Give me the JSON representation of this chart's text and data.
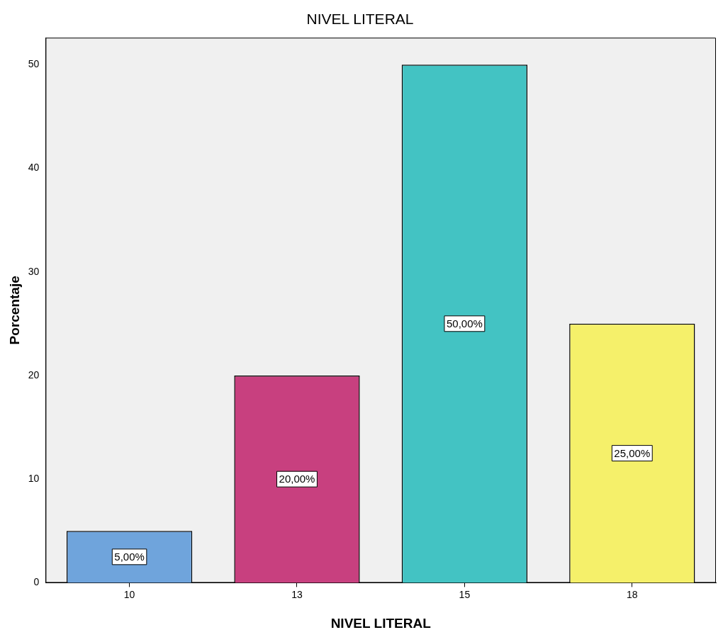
{
  "chart_data": {
    "type": "bar",
    "title": "NIVEL LITERAL",
    "xlabel": "NIVEL LITERAL",
    "ylabel": "Porcentaje",
    "categories": [
      "10",
      "13",
      "15",
      "18"
    ],
    "values": [
      5,
      20,
      50,
      25
    ],
    "colors": [
      "#6fa4dc",
      "#c8407f",
      "#43c3c3",
      "#f5f06a"
    ],
    "value_labels": [
      "5,00%",
      "20,00%",
      "50,00%",
      "25,00%"
    ],
    "ylim": [
      0,
      52.6
    ],
    "yticks": [
      0,
      10,
      20,
      30,
      40,
      50
    ],
    "grid": false,
    "legend": false
  }
}
